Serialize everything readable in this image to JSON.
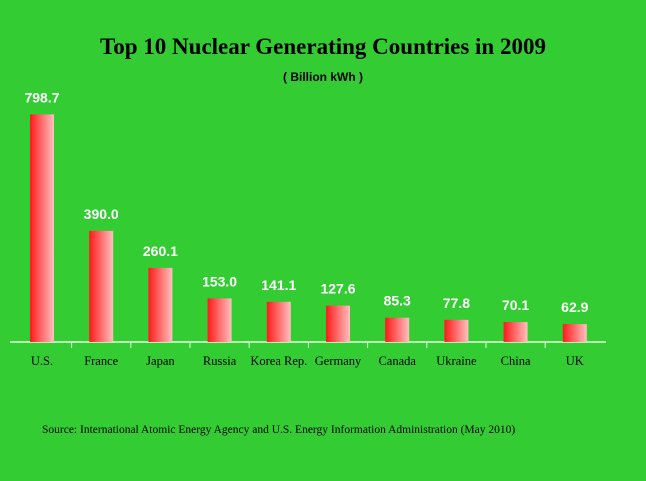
{
  "chart_data": {
    "type": "bar",
    "title": "Top 10 Nuclear Generating Countries in 2009",
    "subtitle": "( Billion kWh )",
    "categories": [
      "U.S.",
      "France",
      "Japan",
      "Russia",
      "Korea Rep.",
      "Germany",
      "Canada",
      "Ukraine",
      "China",
      "UK"
    ],
    "values": [
      798.7,
      390.0,
      260.1,
      153.0,
      141.1,
      127.6,
      85.3,
      77.8,
      70.1,
      62.9
    ],
    "value_labels": [
      "798.7",
      "390.0",
      "260.1",
      "153.0",
      "141.1",
      "127.6",
      "85.3",
      "77.8",
      "70.1",
      "62.9"
    ],
    "ylim": [
      0,
      800
    ],
    "grid": false,
    "source": "Source:  International Atomic Energy Agency and U.S. Energy Information Administration (May 2010)"
  },
  "colors": {
    "background": "#33cc33",
    "bar_dark": "#ff1a1a",
    "bar_light": "#ffc0c0",
    "axis": "#e6ffe6"
  }
}
